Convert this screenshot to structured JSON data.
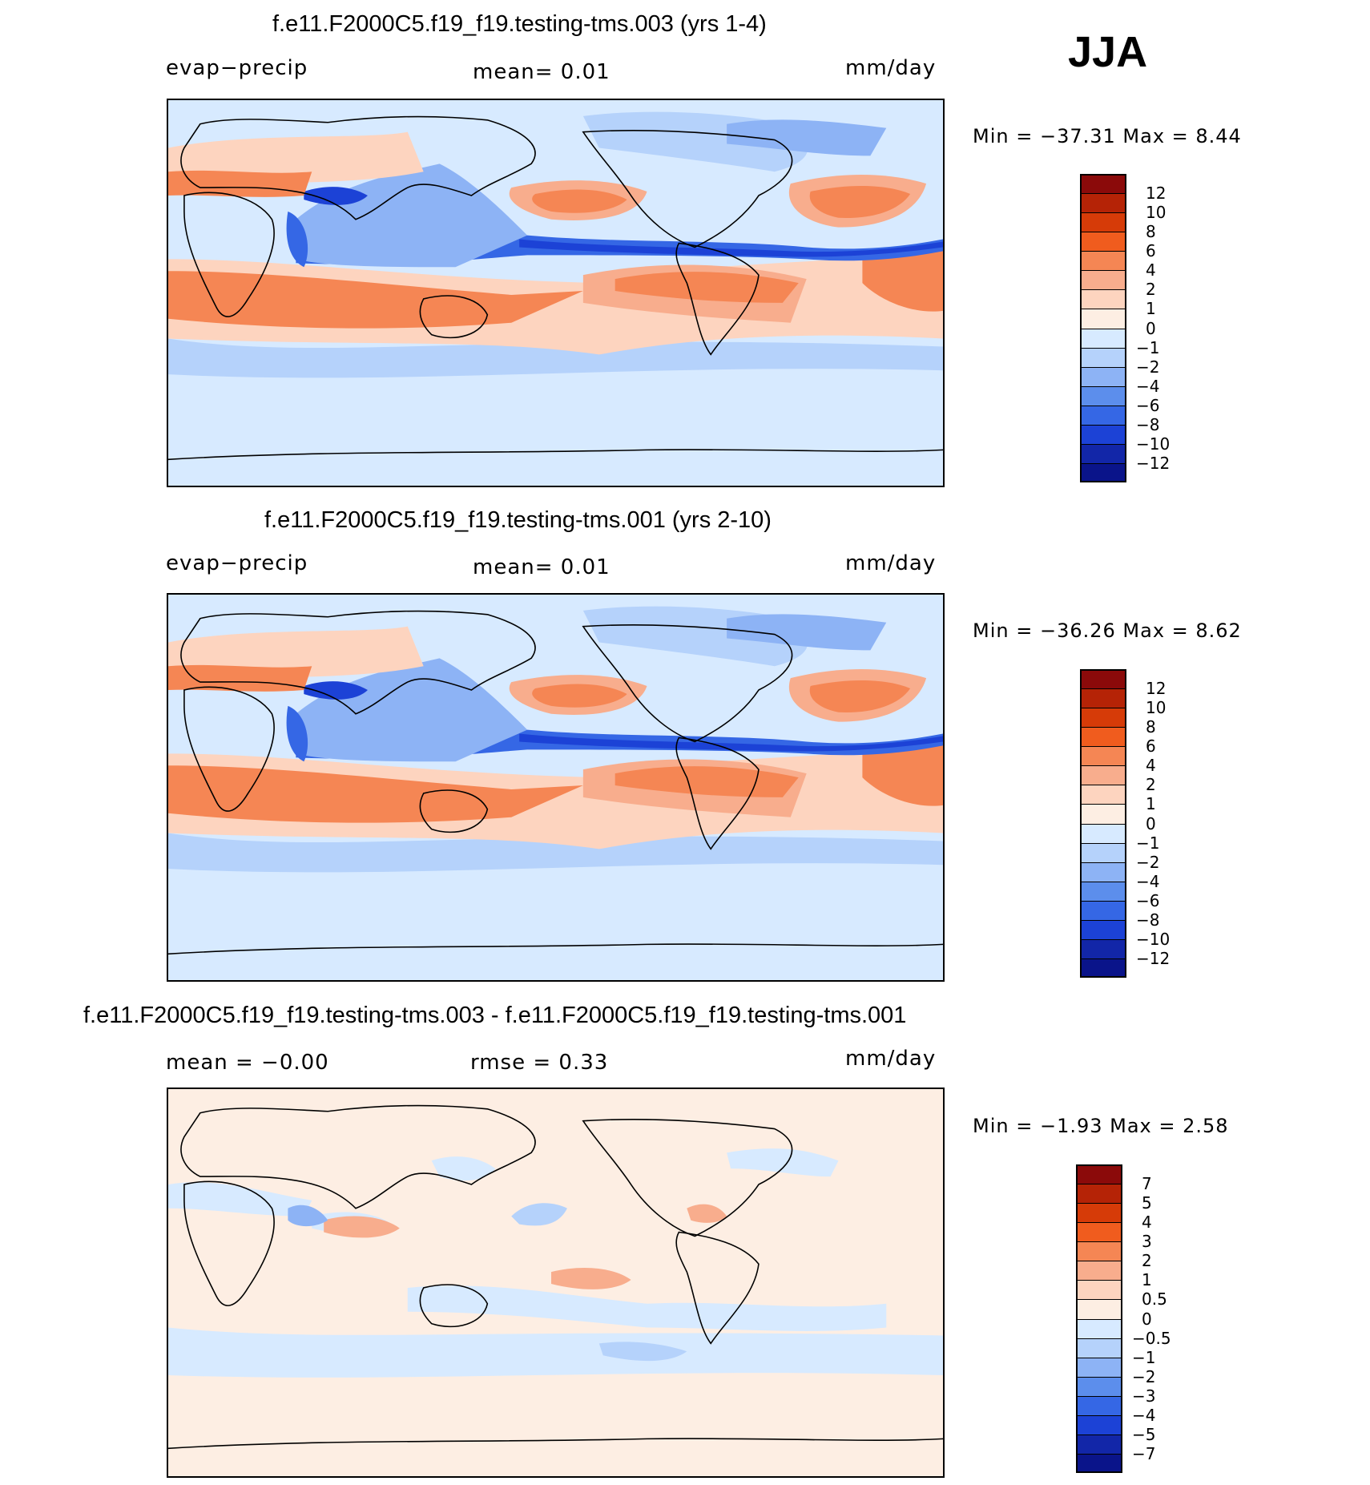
{
  "season": "JJA",
  "panels": [
    {
      "title": "f.e11.F2000C5.f19_f19.testing-tms.003 (yrs 1-4)",
      "left_label": "evap−precip",
      "center_label": "mean=    0.01",
      "right_label": "mm/day",
      "minmax": "Min  =  −37.31  Max  =      8.44",
      "colorbar": {
        "labels": [
          "12",
          "10",
          "8",
          "6",
          "4",
          "2",
          "1",
          "0",
          "−1",
          "−2",
          "−4",
          "−6",
          "−8",
          "−10",
          "−12"
        ],
        "colors": [
          "#8b0a0a",
          "#b52306",
          "#d63b08",
          "#f05c1e",
          "#f58654",
          "#f8ad8d",
          "#fdd4bf",
          "#fdeee3",
          "#d7eaff",
          "#b5d2fb",
          "#8db3f5",
          "#5c8eec",
          "#3567e5",
          "#1c42d6",
          "#1226a8",
          "#0a148a"
        ]
      }
    },
    {
      "title": "f.e11.F2000C5.f19_f19.testing-tms.001 (yrs 2-10)",
      "left_label": "evap−precip",
      "center_label": "mean=    0.01",
      "right_label": "mm/day",
      "minmax": "Min  =  −36.26  Max  =      8.62",
      "colorbar": {
        "labels": [
          "12",
          "10",
          "8",
          "6",
          "4",
          "2",
          "1",
          "0",
          "−1",
          "−2",
          "−4",
          "−6",
          "−8",
          "−10",
          "−12"
        ],
        "colors": [
          "#8b0a0a",
          "#b52306",
          "#d63b08",
          "#f05c1e",
          "#f58654",
          "#f8ad8d",
          "#fdd4bf",
          "#fdeee3",
          "#d7eaff",
          "#b5d2fb",
          "#8db3f5",
          "#5c8eec",
          "#3567e5",
          "#1c42d6",
          "#1226a8",
          "#0a148a"
        ]
      }
    },
    {
      "title": "f.e11.F2000C5.f19_f19.testing-tms.003 - f.e11.F2000C5.f19_f19.testing-tms.001",
      "left_label": "mean  =    −0.00",
      "center_label": "rmse  =     0.33",
      "right_label": "mm/day",
      "minmax": "Min  =     −1.93  Max  =      2.58",
      "colorbar": {
        "labels": [
          "7",
          "5",
          "4",
          "3",
          "2",
          "1",
          "0.5",
          "0",
          "−0.5",
          "−1",
          "−2",
          "−3",
          "−4",
          "−5",
          "−7"
        ],
        "colors": [
          "#8b0a0a",
          "#b52306",
          "#d63b08",
          "#f05c1e",
          "#f58654",
          "#f8ad8d",
          "#fdd4bf",
          "#fdeee3",
          "#d7eaff",
          "#b5d2fb",
          "#8db3f5",
          "#5c8eec",
          "#3567e5",
          "#1c42d6",
          "#1226a8",
          "#0a148a"
        ]
      }
    }
  ]
}
